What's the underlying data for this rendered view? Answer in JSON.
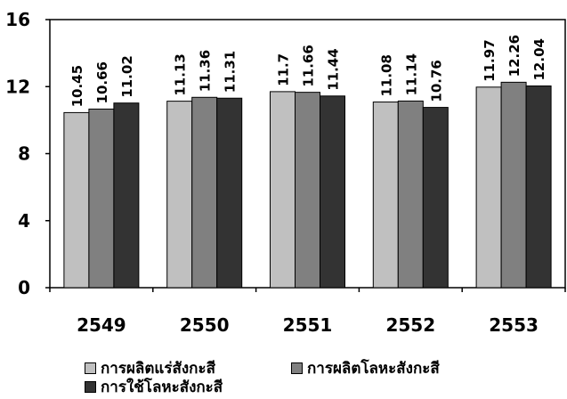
{
  "chart_data": {
    "type": "bar",
    "categories": [
      "2549",
      "2550",
      "2551",
      "2552",
      "2553"
    ],
    "series": [
      {
        "name": "การผลิตแร่สังกะสี",
        "values": [
          10.45,
          11.13,
          11.7,
          11.08,
          11.97
        ],
        "color": "#c0c0c0"
      },
      {
        "name": "การผลิตโลหะสังกะสี",
        "values": [
          10.66,
          11.36,
          11.66,
          11.14,
          12.26
        ],
        "color": "#808080"
      },
      {
        "name": "การใช้โลหะสังกะสี",
        "values": [
          11.02,
          11.31,
          11.44,
          10.76,
          12.04
        ],
        "color": "#333333"
      }
    ],
    "value_labels": [
      [
        "10.45",
        "10.66",
        "11.02"
      ],
      [
        "11.13",
        "11.36",
        "11.31"
      ],
      [
        "11.7",
        "11.66",
        "11.44"
      ],
      [
        "11.08",
        "11.14",
        "10.76"
      ],
      [
        "11.97",
        "12.26",
        "12.04"
      ]
    ],
    "ylim": [
      0,
      16
    ],
    "yticks": [
      "0",
      "4",
      "8",
      "12",
      "16"
    ],
    "grid": false,
    "legend_position": "bottom",
    "title": "",
    "xlabel": "",
    "ylabel": ""
  }
}
